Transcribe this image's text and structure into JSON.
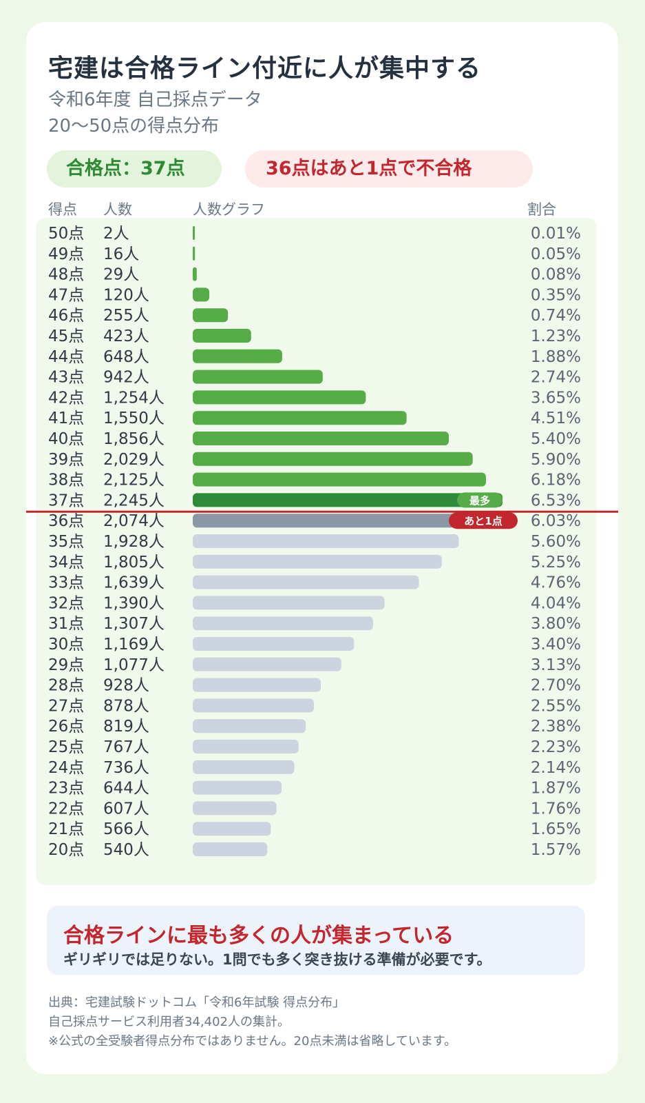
{
  "title": "宅建は合格ライン付近に人が集中する",
  "subtitle_line1": "令和6年度 自己採点データ",
  "subtitle_line2": "20〜50点の得点分布",
  "pass_pill": "合格点：37点",
  "fail_pill": "36点はあと1点で不合格",
  "colors": {
    "pass_bar": "#56ac46",
    "peak_bar": "#2e8b3a",
    "near_bar": "#8b97a6",
    "fail_bar": "#ccd5df",
    "line": "#c1272d"
  },
  "chart_data": {
    "type": "bar",
    "orientation": "horizontal",
    "columns": [
      "得点",
      "人数",
      "人数グラフ",
      "割合"
    ],
    "categories": [
      "50点",
      "49点",
      "48点",
      "47点",
      "46点",
      "45点",
      "44点",
      "43点",
      "42点",
      "41点",
      "40点",
      "39点",
      "38点",
      "37点",
      "36点",
      "35点",
      "34点",
      "33点",
      "32点",
      "31点",
      "30点",
      "29点",
      "28点",
      "27点",
      "26点",
      "25点",
      "24点",
      "23点",
      "22点",
      "21点",
      "20点"
    ],
    "values": [
      2,
      16,
      29,
      120,
      255,
      423,
      648,
      942,
      1254,
      1550,
      1856,
      2029,
      2125,
      2245,
      2074,
      1928,
      1805,
      1639,
      1390,
      1307,
      1169,
      1077,
      928,
      878,
      819,
      767,
      736,
      644,
      607,
      566,
      540
    ],
    "count_labels": [
      "2人",
      "16人",
      "29人",
      "120人",
      "255人",
      "423人",
      "648人",
      "942人",
      "1,254人",
      "1,550人",
      "1,856人",
      "2,029人",
      "2,125人",
      "2,245人",
      "2,074人",
      "1,928人",
      "1,805人",
      "1,639人",
      "1,390人",
      "1,307人",
      "1,169人",
      "1,077人",
      "928人",
      "878人",
      "819人",
      "767人",
      "736人",
      "644人",
      "607人",
      "566人",
      "540人"
    ],
    "percent_labels": [
      "0.01%",
      "0.05%",
      "0.08%",
      "0.35%",
      "0.74%",
      "1.23%",
      "1.88%",
      "2.74%",
      "3.65%",
      "4.51%",
      "5.40%",
      "5.90%",
      "6.18%",
      "6.53%",
      "6.03%",
      "5.60%",
      "5.25%",
      "4.76%",
      "4.04%",
      "3.80%",
      "3.40%",
      "3.13%",
      "2.70%",
      "2.55%",
      "2.38%",
      "2.23%",
      "2.14%",
      "1.87%",
      "1.76%",
      "1.65%",
      "1.57%"
    ],
    "pass_score": 37,
    "annotations": {
      "peak": "最多",
      "near_miss": "あと1点"
    }
  },
  "message_title": "合格ラインに最も多くの人が集まっている",
  "message_text": "ギリギリでは足りない。1問でも多く突き抜ける準備が必要です。",
  "source_line1": "出典：宅建試験ドットコム「令和6年試験 得点分布」",
  "source_line2": "自己採点サービス利用者34,402人の集計。",
  "source_line3": "※公式の全受験者得点分布ではありません。20点未満は省略しています。"
}
